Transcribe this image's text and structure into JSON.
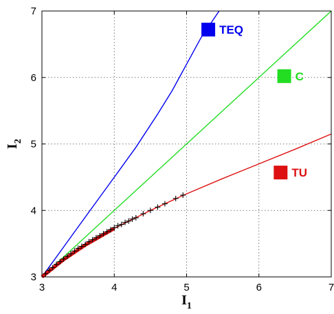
{
  "chart_data": {
    "type": "line",
    "xlabel": "I",
    "xlabel_sub": "1",
    "ylabel": "I",
    "ylabel_sub": "2",
    "xlim": [
      3,
      7
    ],
    "ylim": [
      3,
      7
    ],
    "xticks": [
      3,
      4,
      5,
      6,
      7
    ],
    "yticks": [
      3,
      4,
      5,
      6,
      7
    ],
    "grid": true,
    "legend_placement": "right, inline labels",
    "series": [
      {
        "name": "TEQ",
        "color": "#0000ee",
        "x": [
          3.0,
          3.2,
          3.5,
          3.8,
          4.0,
          4.3,
          4.6,
          4.8,
          5.0,
          5.2,
          5.45
        ],
        "y": [
          3.0,
          3.3,
          3.75,
          4.2,
          4.5,
          4.95,
          5.45,
          5.8,
          6.2,
          6.6,
          7.0
        ]
      },
      {
        "name": "C",
        "color": "#22dd22",
        "x": [
          3.0,
          7.0
        ],
        "y": [
          3.0,
          7.0
        ]
      },
      {
        "name": "TU",
        "color": "#dd1111",
        "x": [
          3.0,
          3.3,
          3.6,
          4.0,
          4.5,
          5.0,
          5.5,
          6.0,
          6.5,
          7.0
        ],
        "y": [
          3.0,
          3.26,
          3.48,
          3.73,
          4.0,
          4.25,
          4.48,
          4.7,
          4.92,
          5.15
        ]
      }
    ],
    "markers": {
      "color": "#000000",
      "symbol": "+",
      "x": [
        3.05,
        3.1,
        3.15,
        3.2,
        3.25,
        3.3,
        3.35,
        3.4,
        3.45,
        3.5,
        3.55,
        3.6,
        3.65,
        3.7,
        3.75,
        3.8,
        3.85,
        3.9,
        3.95,
        4.0,
        4.05,
        4.1,
        4.15,
        4.2,
        4.25,
        4.3,
        4.4,
        4.5,
        4.6,
        4.7,
        4.85,
        4.95
      ],
      "y": [
        3.05,
        3.1,
        3.14,
        3.19,
        3.23,
        3.27,
        3.31,
        3.35,
        3.39,
        3.43,
        3.46,
        3.49,
        3.53,
        3.56,
        3.59,
        3.62,
        3.65,
        3.68,
        3.71,
        3.74,
        3.77,
        3.79,
        3.82,
        3.84,
        3.87,
        3.89,
        3.95,
        4.0,
        4.05,
        4.1,
        4.18,
        4.23
      ]
    },
    "legend": [
      {
        "label": "TEQ",
        "color": "#0000ee",
        "x": 5.3,
        "y": 6.72
      },
      {
        "label": "C",
        "color": "#22dd22",
        "x": 6.35,
        "y": 6.02
      },
      {
        "label": "TU",
        "color": "#dd1111",
        "x": 6.3,
        "y": 4.57
      }
    ]
  }
}
